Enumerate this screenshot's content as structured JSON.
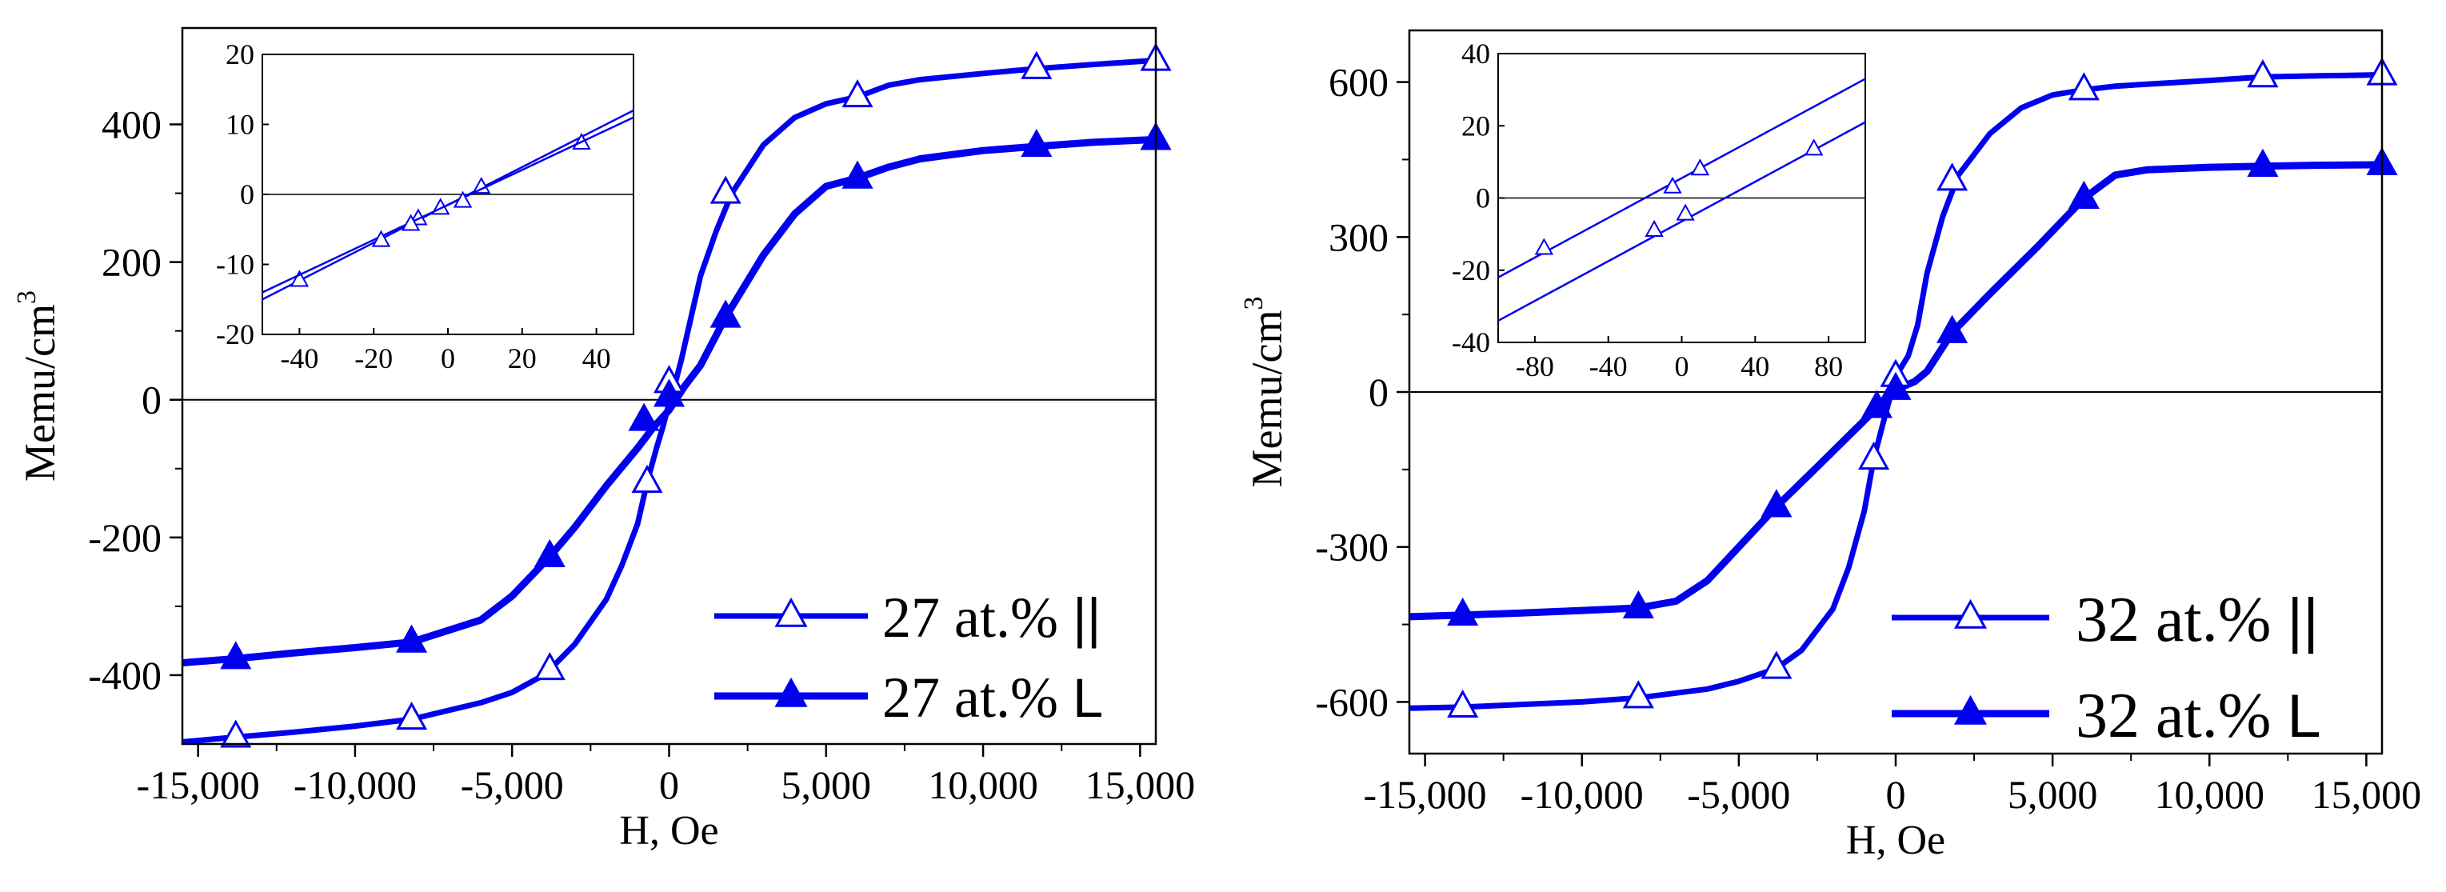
{
  "colors": {
    "series": "#0000ee",
    "axes": "#000000",
    "zero_line": "#000000",
    "background": "#ffffff"
  },
  "chart_data": [
    {
      "type": "line",
      "name": "27at",
      "xlabel": "H, Oe",
      "ylabel": "Memu/cm",
      "ylabel_sup": "3",
      "xlim": [
        -15500,
        15500
      ],
      "ylim": [
        -500,
        540
      ],
      "xticks": [
        -15000,
        -10000,
        -5000,
        0,
        5000,
        10000,
        15000
      ],
      "xtick_labels": [
        "-15,000",
        "-10,000",
        "-5,000",
        "0",
        "5,000",
        "10,000",
        "15,000"
      ],
      "yticks": [
        -400,
        -200,
        0,
        200,
        400
      ],
      "ytick_labels": [
        "-400",
        "-200",
        "0",
        "200",
        "400"
      ],
      "zero_line": true,
      "legend_position": "bottom-right",
      "series": [
        {
          "name": "27 at.%",
          "legend_symbol": "||",
          "marker": "open-triangle",
          "x": [
            -15500,
            -13800,
            -12000,
            -10000,
            -8200,
            -6000,
            -5000,
            -4000,
            -3800,
            -3000,
            -2000,
            -1500,
            -1000,
            -700,
            -400,
            -200,
            0,
            200,
            400,
            700,
            1000,
            1500,
            2000,
            3000,
            4000,
            5000,
            6000,
            7000,
            8000,
            10000,
            11700,
            13500,
            15500
          ],
          "y": [
            -497,
            -490,
            -483,
            -474,
            -464,
            -440,
            -425,
            -400,
            -392,
            -355,
            -290,
            -240,
            -180,
            -120,
            -70,
            -40,
            -5,
            25,
            60,
            120,
            180,
            245,
            300,
            370,
            410,
            430,
            440,
            457,
            465,
            474,
            481,
            487,
            493
          ],
          "marker_x": [
            -13800,
            -8200,
            -3800,
            -700,
            0,
            1800,
            6000,
            11700,
            15500
          ],
          "marker_y": [
            -490,
            -464,
            -392,
            -120,
            25,
            300,
            440,
            481,
            493
          ]
        },
        {
          "name": "27 at.%",
          "legend_symbol": "L",
          "marker": "filled-triangle",
          "x": [
            -15500,
            -13800,
            -12000,
            -10000,
            -8200,
            -6000,
            -5000,
            -3800,
            -3000,
            -2000,
            -1000,
            -500,
            0,
            500,
            1000,
            1800,
            3000,
            4000,
            5000,
            6000,
            7000,
            8000,
            10000,
            11700,
            13500,
            15500
          ],
          "y": [
            -382,
            -376,
            -368,
            -360,
            -352,
            -320,
            -285,
            -228,
            -185,
            -125,
            -70,
            -40,
            -15,
            20,
            50,
            120,
            210,
            270,
            310,
            322,
            338,
            350,
            362,
            368,
            374,
            378
          ],
          "marker_x": [
            -13800,
            -8200,
            -3800,
            -800,
            0,
            1800,
            6000,
            11700,
            15500
          ],
          "marker_y": [
            -376,
            -352,
            -228,
            -30,
            5,
            120,
            322,
            368,
            378
          ]
        }
      ],
      "inset": {
        "xlim": [
          -50,
          50
        ],
        "ylim": [
          -20,
          20
        ],
        "xticks": [
          -40,
          -20,
          0,
          20,
          40
        ],
        "xtick_labels": [
          "-40",
          "-20",
          "0",
          "20",
          "40"
        ],
        "yticks": [
          -20,
          -10,
          0,
          10,
          20
        ],
        "ytick_labels": [
          "-20",
          "-10",
          "0",
          "10",
          "20"
        ],
        "series": [
          {
            "x": [
              -50,
              50
            ],
            "y": [
              -15,
              12
            ],
            "marker_x": [
              -40,
              -8,
              -2,
              9,
              36
            ],
            "marker_y": [
              -12.3,
              -3.5,
              -2,
              1,
              7.3
            ],
            "open_markers": true
          },
          {
            "x": [
              -50,
              50
            ],
            "y": [
              -14,
              11
            ],
            "marker_x": [
              -18,
              -10,
              4
            ],
            "marker_y": [
              -6.6,
              -4.3,
              -1
            ],
            "open_markers": true
          }
        ]
      }
    },
    {
      "type": "line",
      "name": "32at",
      "xlabel": "H, Oe",
      "ylabel": "Memu/cm",
      "ylabel_sup": "3",
      "xlim": [
        -15500,
        15500
      ],
      "ylim": [
        -700,
        700
      ],
      "xticks": [
        -15000,
        -10000,
        -5000,
        0,
        5000,
        10000,
        15000
      ],
      "xtick_labels": [
        "-15,000",
        "-10,000",
        "-5,000",
        "0",
        "5,000",
        "10,000",
        "15,000"
      ],
      "yticks": [
        -600,
        -300,
        0,
        300,
        600
      ],
      "ytick_labels": [
        "-600",
        "-300",
        "0",
        "300",
        "600"
      ],
      "zero_line": true,
      "legend_position": "bottom-right",
      "series": [
        {
          "name": "32 at.%",
          "legend_symbol": "||",
          "marker": "open-triangle",
          "x": [
            -15500,
            -13800,
            -12000,
            -10000,
            -8200,
            -6000,
            -5000,
            -3800,
            -3000,
            -2000,
            -1500,
            -1000,
            -700,
            -400,
            0,
            400,
            700,
            1000,
            1500,
            2000,
            3000,
            4000,
            5000,
            6000,
            7000,
            8000,
            10000,
            11700,
            13500,
            15500
          ],
          "y": [
            -612,
            -610,
            -605,
            -600,
            -592,
            -575,
            -560,
            -535,
            -500,
            -420,
            -340,
            -230,
            -130,
            -60,
            30,
            70,
            130,
            230,
            340,
            420,
            500,
            550,
            575,
            585,
            592,
            596,
            603,
            610,
            612,
            614
          ],
          "marker_x": [
            -13800,
            -8200,
            -3800,
            -700,
            0,
            1800,
            6000,
            11700,
            15500
          ],
          "marker_y": [
            -610,
            -592,
            -535,
            -130,
            30,
            410,
            585,
            610,
            614
          ],
          "line_width": "thin"
        },
        {
          "name": "32 at.%",
          "legend_symbol": "L",
          "marker": "filled-triangle",
          "x": [
            -15500,
            -13800,
            -12000,
            -10000,
            -8200,
            -7000,
            -6000,
            -5000,
            -3800,
            -2500,
            -1000,
            -600,
            0,
            600,
            1000,
            1800,
            3000,
            4500,
            6000,
            7000,
            8000,
            10000,
            11700,
            13500,
            15500
          ],
          "y": [
            -435,
            -432,
            -428,
            -423,
            -418,
            -405,
            -365,
            -300,
            -222,
            -145,
            -55,
            -30,
            5,
            20,
            40,
            115,
            190,
            280,
            375,
            420,
            430,
            435,
            437,
            439,
            440
          ],
          "marker_x": [
            -13800,
            -8200,
            -3800,
            -600,
            0,
            1800,
            6000,
            11700,
            15500
          ],
          "marker_y": [
            -432,
            -418,
            -222,
            -30,
            5,
            115,
            375,
            437,
            440
          ]
        }
      ],
      "inset": {
        "xlim": [
          -100,
          100
        ],
        "ylim": [
          -40,
          40
        ],
        "xticks": [
          -80,
          -40,
          0,
          40,
          80
        ],
        "xtick_labels": [
          "-80",
          "-40",
          "0",
          "40",
          "80"
        ],
        "yticks": [
          -40,
          -20,
          0,
          20,
          40
        ],
        "ytick_labels": [
          "-40",
          "-20",
          "0",
          "20",
          "40"
        ],
        "series": [
          {
            "x": [
              -100,
              100
            ],
            "y": [
              -22,
              33
            ],
            "marker_x": [
              -75,
              -5,
              10
            ],
            "marker_y": [
              -14,
              3,
              8
            ],
            "open_markers": true
          },
          {
            "x": [
              -100,
              100
            ],
            "y": [
              -34,
              21
            ],
            "marker_x": [
              -15,
              2,
              72
            ],
            "marker_y": [
              -9,
              -4.5,
              13.5
            ],
            "open_markers": true
          }
        ]
      }
    }
  ]
}
